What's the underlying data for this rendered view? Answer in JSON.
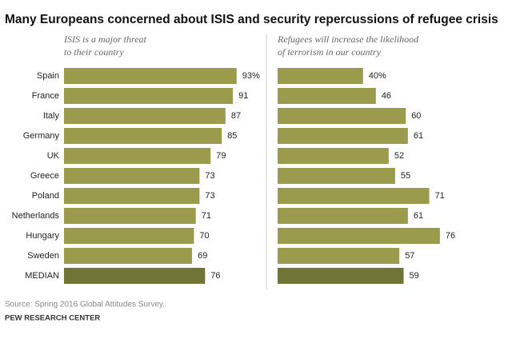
{
  "title": "Many Europeans concerned about ISIS and security repercussions of refugee crisis",
  "source": "Source: Spring 2016 Global Attitudes Survey.",
  "credit": "PEW RESEARCH CENTER",
  "chart_data": [
    {
      "type": "bar",
      "orientation": "horizontal",
      "subtitle": [
        "ISIS is a major threat",
        "to their country"
      ],
      "categories": [
        "Spain",
        "France",
        "Italy",
        "Germany",
        "UK",
        "Greece",
        "Poland",
        "Netherlands",
        "Hungary",
        "Sweden",
        "MEDIAN"
      ],
      "values": [
        93,
        91,
        87,
        85,
        79,
        73,
        73,
        71,
        70,
        69,
        76
      ],
      "value_labels": [
        "93%",
        "91",
        "87",
        "85",
        "79",
        "73",
        "73",
        "71",
        "70",
        "69",
        "76"
      ],
      "colors": [
        "#9a9b4d",
        "#9a9b4d",
        "#9a9b4d",
        "#9a9b4d",
        "#9a9b4d",
        "#9a9b4d",
        "#9a9b4d",
        "#9a9b4d",
        "#9a9b4d",
        "#9a9b4d",
        "#707437"
      ],
      "xlim": [
        0,
        100
      ]
    },
    {
      "type": "bar",
      "orientation": "horizontal",
      "subtitle": [
        "Refugees will increase the likelihood",
        "of terrorism in our country"
      ],
      "values": [
        40,
        46,
        60,
        61,
        52,
        55,
        71,
        61,
        76,
        57,
        59
      ],
      "value_labels": [
        "40%",
        "46",
        "60",
        "61",
        "52",
        "55",
        "71",
        "61",
        "76",
        "57",
        "59"
      ],
      "colors": [
        "#9a9b4d",
        "#9a9b4d",
        "#9a9b4d",
        "#9a9b4d",
        "#9a9b4d",
        "#9a9b4d",
        "#9a9b4d",
        "#9a9b4d",
        "#9a9b4d",
        "#9a9b4d",
        "#707437"
      ],
      "xlim": [
        0,
        100
      ]
    }
  ]
}
